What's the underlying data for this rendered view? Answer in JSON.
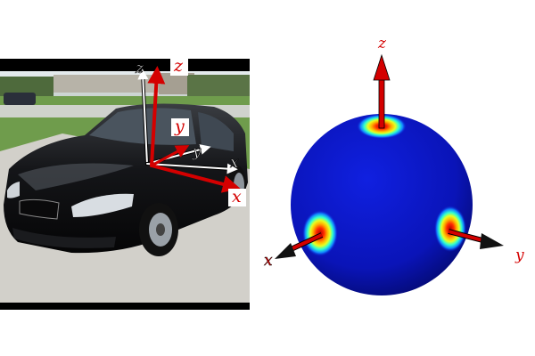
{
  "photo": {
    "camera_axes": {
      "z": "z",
      "y": "y",
      "x": "x"
    },
    "object_axes": {
      "z": "z",
      "y": "y",
      "x": "x"
    }
  },
  "sphere": {
    "axes": {
      "z": "z",
      "x": "x",
      "y": "y"
    },
    "colors": {
      "background": "#0a14c8",
      "hot_center": "#c80000",
      "arrow": "#d40000"
    }
  }
}
